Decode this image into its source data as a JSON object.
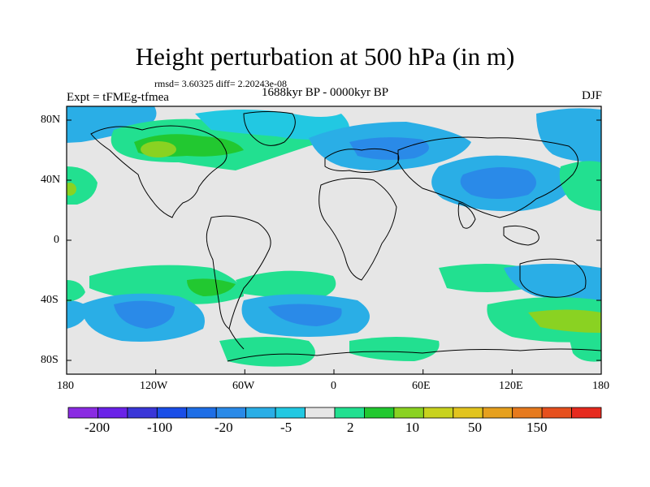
{
  "header": {
    "title": "Height perturbation at 500 hPa (in m)",
    "stats": "rmsd= 3.60325 diff= 2.20243e-08",
    "experiment": "Expt = tFMEg-tfmea",
    "period": "1688kyr BP - 0000kyr BP",
    "season": "DJF"
  },
  "axes": {
    "y_ticks": [
      "80N",
      "40N",
      "0",
      "40S",
      "80S"
    ],
    "x_ticks": [
      "180",
      "120W",
      "60W",
      "0",
      "60E",
      "120E",
      "180"
    ]
  },
  "colorbar": {
    "labels": [
      "-200",
      "-100",
      "-20",
      "-5",
      "2",
      "10",
      "50",
      "150"
    ],
    "colors": [
      "#8a2be2",
      "#6a22e8",
      "#3a36d8",
      "#1a4ee8",
      "#1e6ee6",
      "#2a8ae8",
      "#2aaee6",
      "#22c8e2",
      "#e6e6e6",
      "#22e090",
      "#22c830",
      "#8ad222",
      "#c8d21e",
      "#e2c41e",
      "#e6a01e",
      "#e67a1e",
      "#e6501e",
      "#e62a1e"
    ],
    "zero_color": "#e6e6e6"
  },
  "map": {
    "background_color": "#e6e6e6",
    "anomaly_colors": {
      "blue_light": "#2aaee6",
      "blue_mid": "#2a8ae8",
      "blue_deep": "#1e6ee6",
      "cyan": "#22c8e2",
      "green_light": "#22e090",
      "green": "#22c830",
      "yellow_green": "#8ad222",
      "yellow": "#c8d21e"
    }
  }
}
